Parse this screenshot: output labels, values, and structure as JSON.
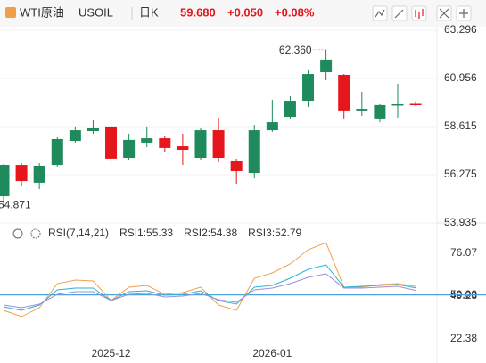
{
  "header": {
    "name": "WTI原油",
    "symbol": "USOIL",
    "period": "日K",
    "price": "59.680",
    "change": "+0.050",
    "change_pct": "+0.08%"
  },
  "chart_data": [
    {
      "type": "candlestick",
      "open": [
        55.235,
        56.75,
        55.89,
        56.75,
        57.92,
        58.4,
        58.62,
        57.1,
        57.84,
        58.05,
        57.66,
        57.1,
        58.44,
        56.97,
        56.36,
        58.44,
        59.09,
        59.87,
        61.26,
        61.13,
        59.4,
        59.01,
        59.66,
        59.72
      ],
      "high": [
        56.795,
        56.84,
        56.84,
        58.1,
        58.62,
        58.92,
        59.01,
        58.27,
        58.62,
        58.18,
        58.27,
        58.53,
        59.05,
        57.06,
        58.7,
        59.92,
        60.09,
        61.35,
        62.36,
        61.17,
        60.31,
        59.7,
        60.7,
        59.85
      ],
      "low": [
        54.871,
        55.76,
        55.58,
        56.67,
        57.84,
        58.27,
        56.75,
        57.01,
        57.62,
        57.4,
        56.75,
        57.01,
        56.88,
        55.84,
        56.1,
        58.36,
        59.01,
        59.57,
        60.87,
        59.01,
        59.14,
        58.83,
        59.05,
        59.6
      ],
      "close": [
        56.752,
        55.97,
        56.71,
        58.01,
        58.44,
        58.53,
        57.06,
        57.97,
        58.05,
        57.58,
        57.49,
        58.44,
        57.1,
        56.45,
        58.44,
        58.83,
        59.87,
        61.17,
        61.87,
        59.4,
        59.48,
        59.66,
        59.7,
        59.68
      ],
      "up_color": "#1f8a5b",
      "down_color": "#e5161c",
      "ylim": [
        53.85,
        63.815
      ],
      "yticks": [
        {
          "value": 63.296,
          "label": "63.296"
        },
        {
          "value": 60.956,
          "label": "60.956"
        },
        {
          "value": 58.615,
          "label": "58.615"
        },
        {
          "value": 56.275,
          "label": "56.275"
        },
        {
          "value": 53.935,
          "label": "53.935"
        }
      ],
      "tick_colors": [
        "#e5161c",
        "#e5161c",
        "#1f8a5b",
        "#1f8a5b",
        "#1f8a5b"
      ],
      "grid": true,
      "annotations": [
        {
          "value": 62.36,
          "label": "62.360"
        },
        {
          "value": 54.871,
          "label": "54.871"
        }
      ]
    },
    {
      "type": "line",
      "title": "RSI(7,14,21)",
      "categories": [
        null,
        null,
        null,
        null,
        null,
        null,
        "2025-12",
        null,
        null,
        null,
        null,
        null,
        null,
        null,
        null,
        "2026-01",
        null,
        null,
        null,
        null,
        null,
        null,
        null,
        null
      ],
      "series": [
        {
          "name": "RSI1:55.33",
          "color": "#f0a04b",
          "values": [
            40.27,
            36.36,
            41.95,
            57.05,
            59.29,
            58.73,
            46.43,
            54.82,
            55.94,
            50.34,
            51.46,
            54.82,
            43.63,
            40.27,
            60.41,
            63.77,
            69.36,
            78.31,
            82.78,
            54.82,
            54.82,
            56.49,
            57.05,
            55.33
          ]
        },
        {
          "name": "RSI2:54.38",
          "color": "#2ab3d6",
          "values": [
            42.51,
            40.27,
            43.63,
            53.14,
            54.26,
            54.26,
            46.43,
            52.02,
            52.58,
            49.79,
            50.34,
            52.58,
            46.43,
            44.19,
            54.82,
            55.94,
            60.41,
            66.0,
            68.8,
            54.82,
            55.38,
            55.94,
            56.49,
            54.38
          ]
        },
        {
          "name": "RSI3:52.79",
          "color": "#9b8fd8",
          "values": [
            43.63,
            41.95,
            44.19,
            50.34,
            52.02,
            52.02,
            46.43,
            50.34,
            50.9,
            48.66,
            49.22,
            50.9,
            46.99,
            45.31,
            53.14,
            54.26,
            57.05,
            60.97,
            63.21,
            54.26,
            54.26,
            54.82,
            55.38,
            52.79
          ]
        }
      ],
      "ylim": [
        11.2,
        86.7
      ],
      "yticks": [
        76.07,
        {
          "value": 50,
          "label": "50.00"
        },
        49.23,
        22.38
      ],
      "reference_line": {
        "value": 50,
        "color": "#4aa3df"
      }
    }
  ]
}
